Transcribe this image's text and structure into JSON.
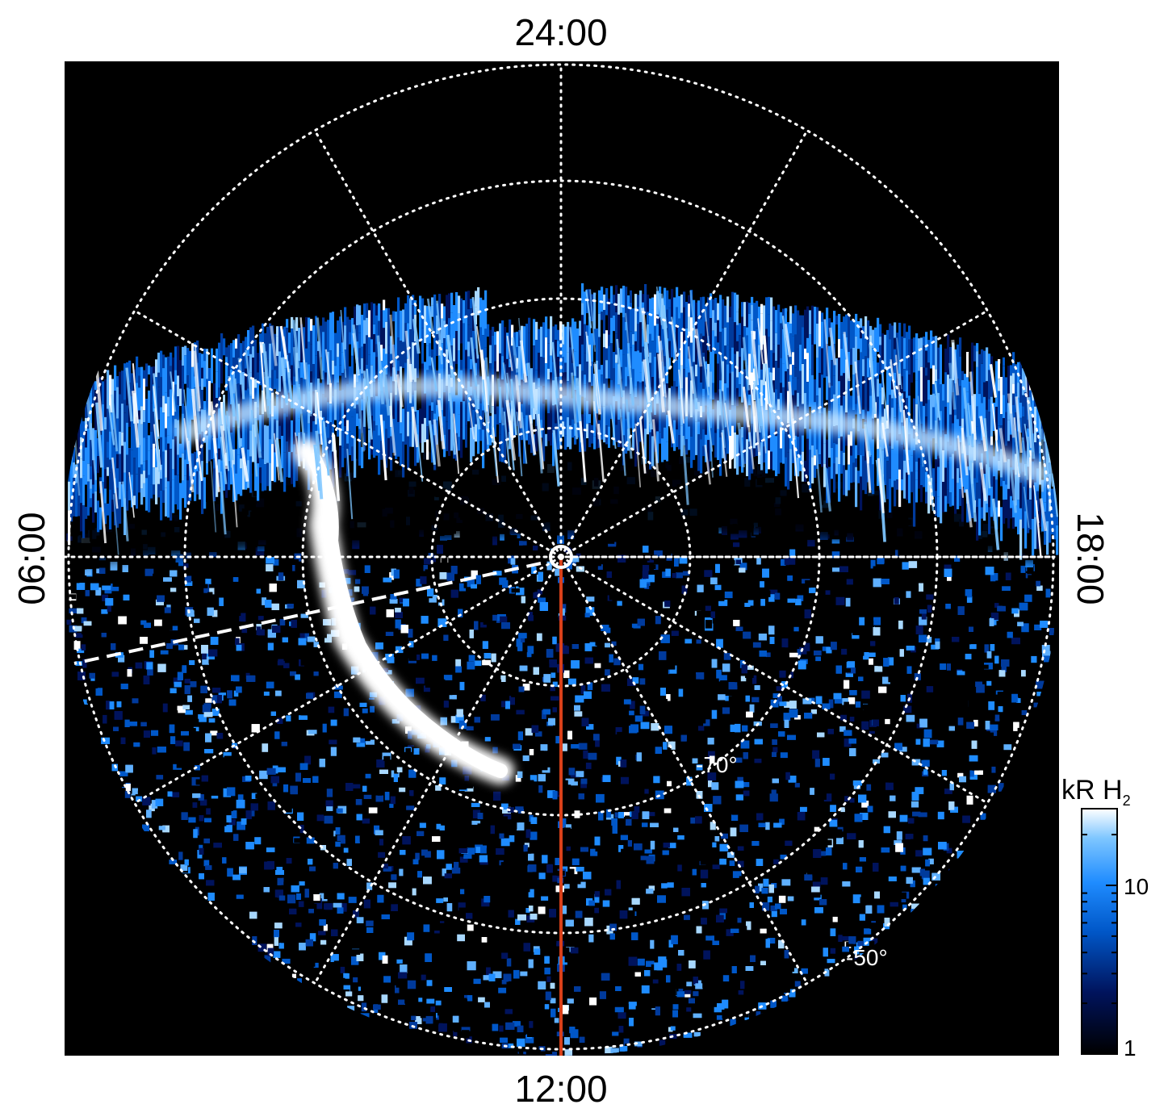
{
  "local_time_labels": {
    "top": "24:00",
    "bottom": "12:00",
    "left": "06:00",
    "right": "18:00"
  },
  "latitude_labels": {
    "inner": "-70°",
    "outer": "-50°"
  },
  "colorbar": {
    "title": "kR H",
    "title_subscript": "2",
    "ticks": [
      "10",
      "1"
    ],
    "scale": "log",
    "colors": [
      "#000000",
      "#00135c",
      "#0057c8",
      "#1f8cff",
      "#7ec6ff",
      "#ffffff"
    ]
  },
  "colors": {
    "background_plot": "#000000",
    "grid": "#ffffff",
    "noon_meridian": "#d9401a",
    "aurora_bright": "#ffffff",
    "aurora_mid": "#1f8cff",
    "aurora_dark": "#00135c"
  }
}
